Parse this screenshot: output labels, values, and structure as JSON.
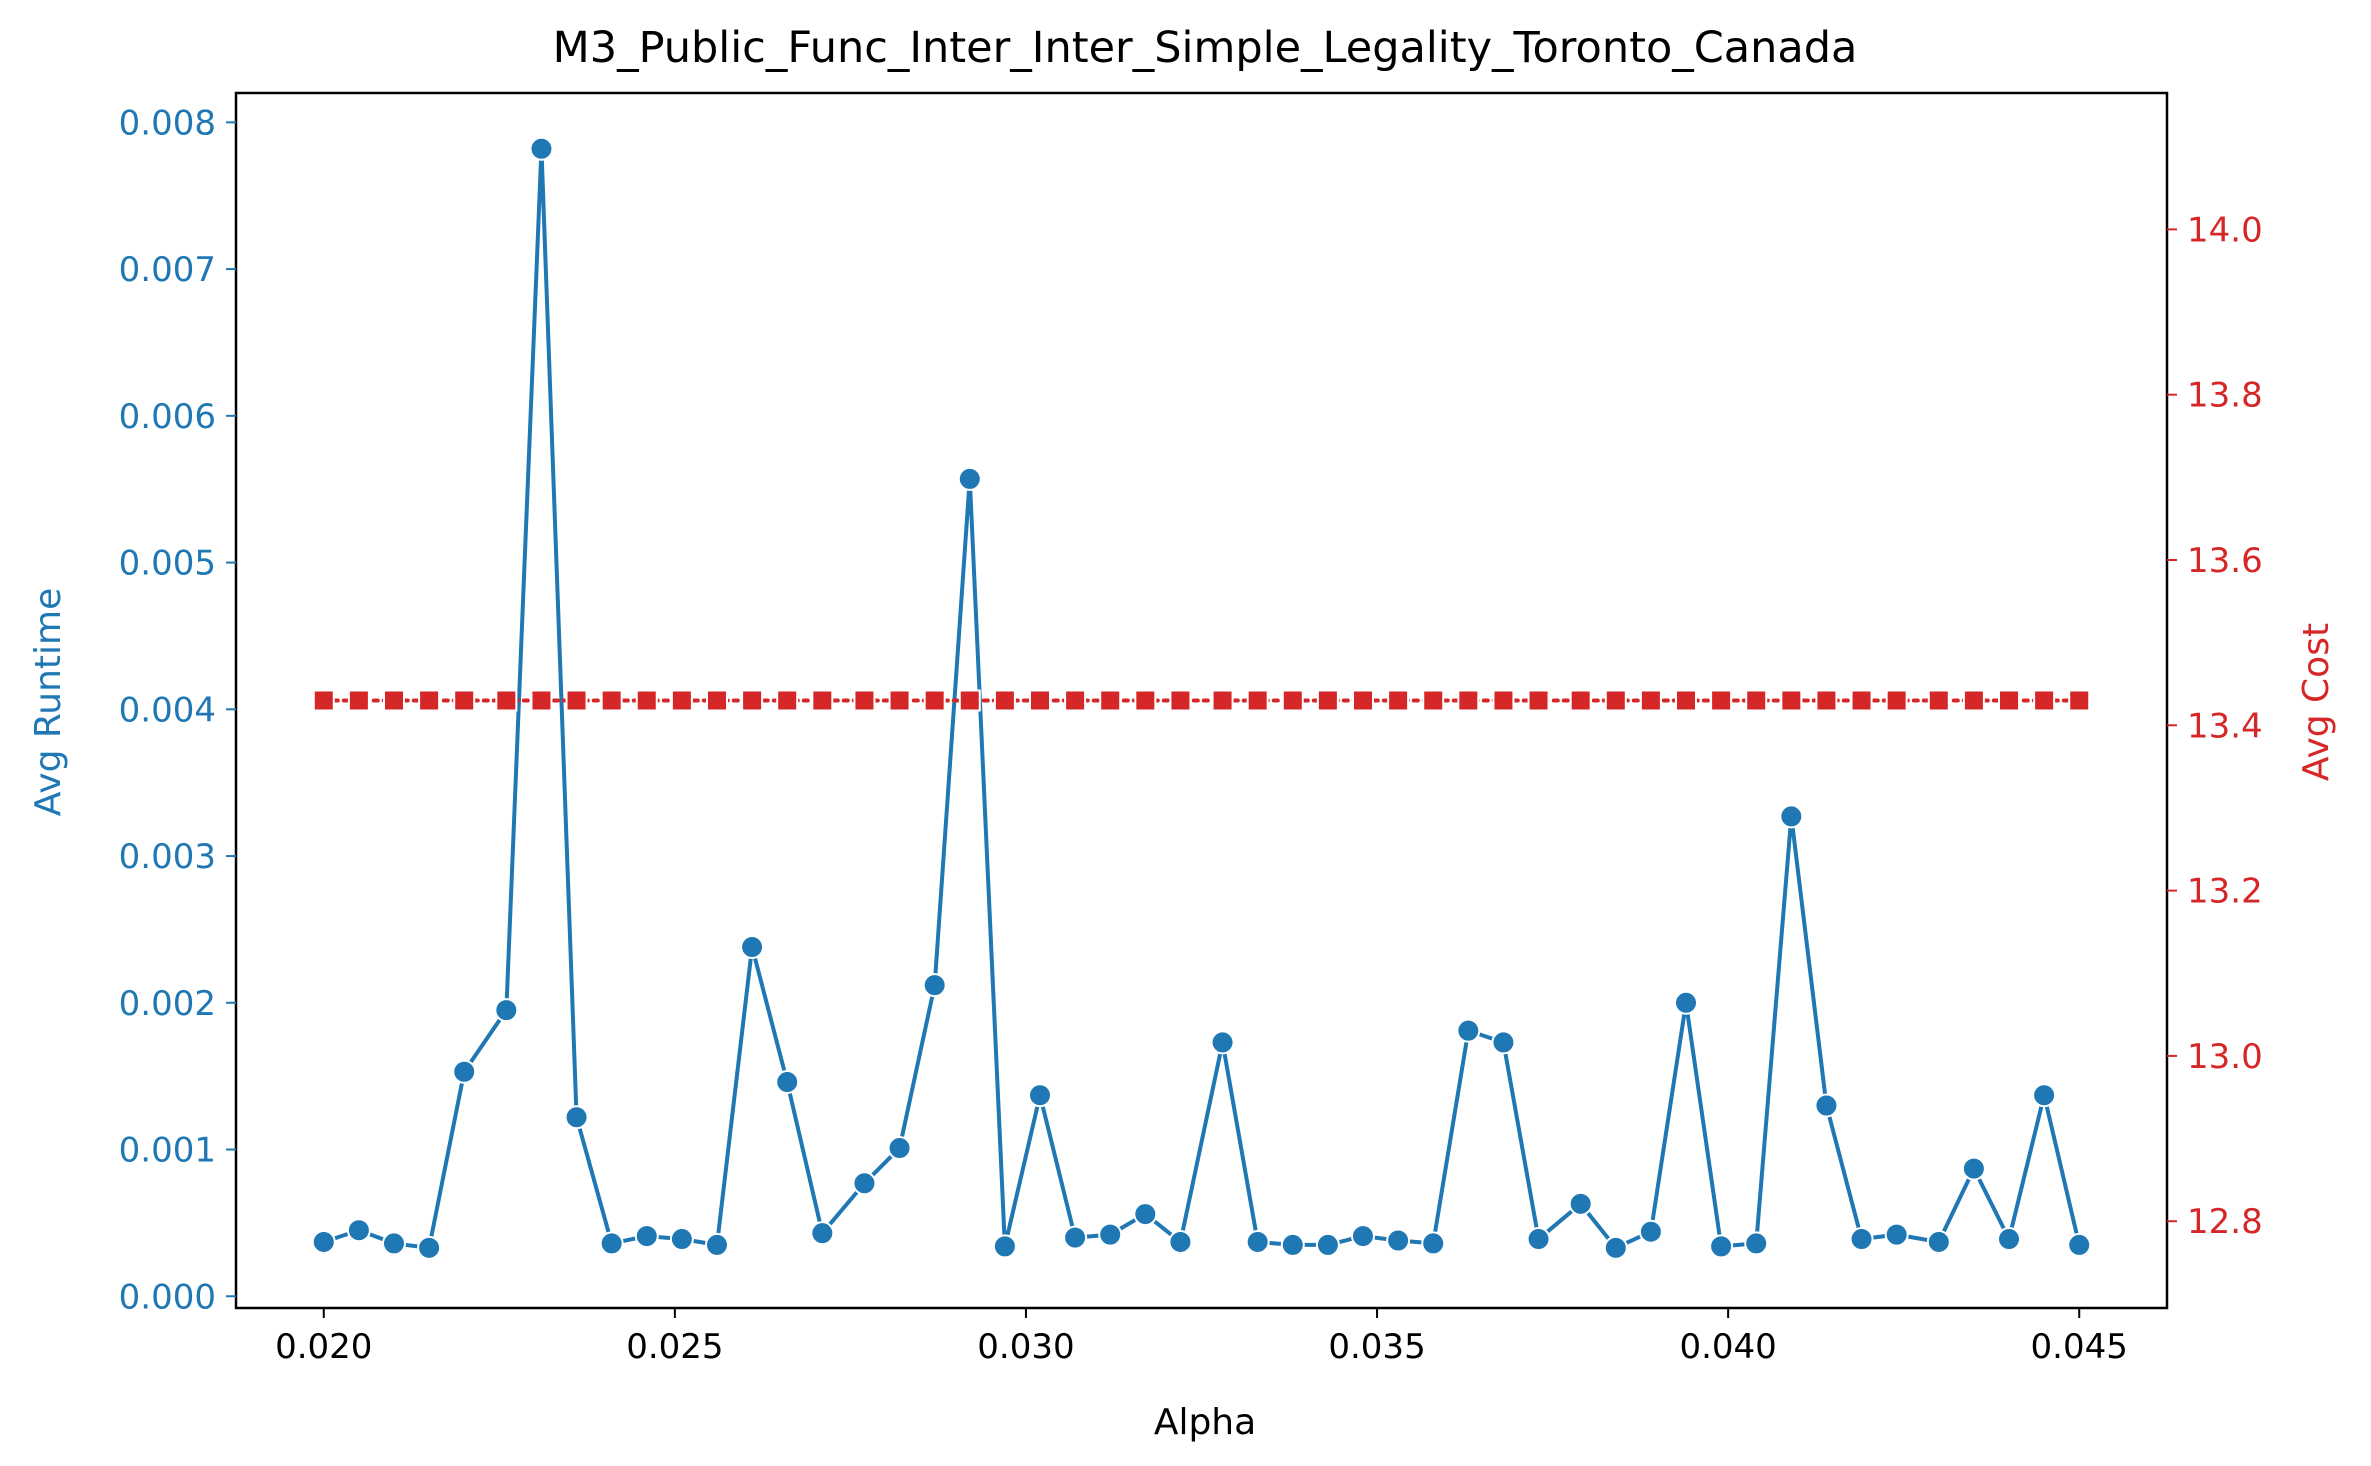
{
  "chart_data": {
    "type": "line",
    "title": "M3_Public_Func_Inter_Inter_Simple_Legality_Toronto_Canada",
    "xlabel": "Alpha",
    "ylabel_left": "Avg Runtime",
    "ylabel_right": "Avg Cost",
    "xlim": [
      0.01875,
      0.04625
    ],
    "ylim_left": [
      -8e-05,
      0.0082
    ],
    "ylim_right": [
      12.695,
      14.165
    ],
    "x_ticks": [
      0.02,
      0.025,
      0.03,
      0.035,
      0.04,
      0.045
    ],
    "x_tick_labels": [
      "0.020",
      "0.025",
      "0.030",
      "0.035",
      "0.040",
      "0.045"
    ],
    "y_left_ticks": [
      0,
      0.001,
      0.002,
      0.003,
      0.004,
      0.005,
      0.006,
      0.007,
      0.008
    ],
    "y_left_tick_labels": [
      "0.000",
      "0.001",
      "0.002",
      "0.003",
      "0.004",
      "0.005",
      "0.006",
      "0.007",
      "0.008"
    ],
    "y_right_ticks": [
      12.8,
      13.0,
      13.2,
      13.4,
      13.6,
      13.8,
      14.0
    ],
    "y_right_tick_labels": [
      "12.8",
      "13.0",
      "13.2",
      "13.4",
      "13.6",
      "13.8",
      "14.0"
    ],
    "x": [
      0.02,
      0.0205,
      0.021,
      0.0215,
      0.022,
      0.0226,
      0.0231,
      0.0236,
      0.0241,
      0.0246,
      0.0251,
      0.0256,
      0.0261,
      0.0266,
      0.0271,
      0.0277,
      0.0282,
      0.0287,
      0.0292,
      0.0297,
      0.0302,
      0.0307,
      0.0312,
      0.0317,
      0.0322,
      0.0328,
      0.0333,
      0.0338,
      0.0343,
      0.0348,
      0.0353,
      0.0358,
      0.0363,
      0.0368,
      0.0373,
      0.0379,
      0.0384,
      0.0389,
      0.0394,
      0.0399,
      0.0404,
      0.0409,
      0.0414,
      0.0419,
      0.0424,
      0.043,
      0.0435,
      0.044,
      0.0445,
      0.045
    ],
    "grid": false,
    "legend": "none",
    "series": [
      {
        "axis": "left",
        "color": "#1f77b4",
        "line_style": "solid",
        "marker": "circle",
        "values": [
          0.00037,
          0.00045,
          0.00036,
          0.00033,
          0.00153,
          0.00195,
          0.00782,
          0.00122,
          0.00036,
          0.00041,
          0.00039,
          0.00035,
          0.00238,
          0.00146,
          0.00043,
          0.00077,
          0.00101,
          0.00212,
          0.00557,
          0.00034,
          0.00137,
          0.0004,
          0.00042,
          0.00056,
          0.00037,
          0.00173,
          0.00037,
          0.00035,
          0.00035,
          0.00041,
          0.00038,
          0.00036,
          0.00181,
          0.00173,
          0.00039,
          0.00063,
          0.00033,
          0.00044,
          0.002,
          0.00034,
          0.00036,
          0.00327,
          0.0013,
          0.00039,
          0.00042,
          0.00037,
          0.00087,
          0.00039,
          0.00137,
          0.00035
        ]
      },
      {
        "axis": "right",
        "color": "#d62728",
        "line_style": "dotted",
        "marker": "square",
        "values": [
          13.43,
          13.43,
          13.43,
          13.43,
          13.43,
          13.43,
          13.43,
          13.43,
          13.43,
          13.43,
          13.43,
          13.43,
          13.43,
          13.43,
          13.43,
          13.43,
          13.43,
          13.43,
          13.43,
          13.43,
          13.43,
          13.43,
          13.43,
          13.43,
          13.43,
          13.43,
          13.43,
          13.43,
          13.43,
          13.43,
          13.43,
          13.43,
          13.43,
          13.43,
          13.43,
          13.43,
          13.43,
          13.43,
          13.43,
          13.43,
          13.43,
          13.43,
          13.43,
          13.43,
          13.43,
          13.43,
          13.43,
          13.43,
          13.43,
          13.43
        ]
      }
    ],
    "colors": {
      "left_axis": "#1f77b4",
      "right_axis": "#d62728",
      "text": "#000000"
    }
  }
}
